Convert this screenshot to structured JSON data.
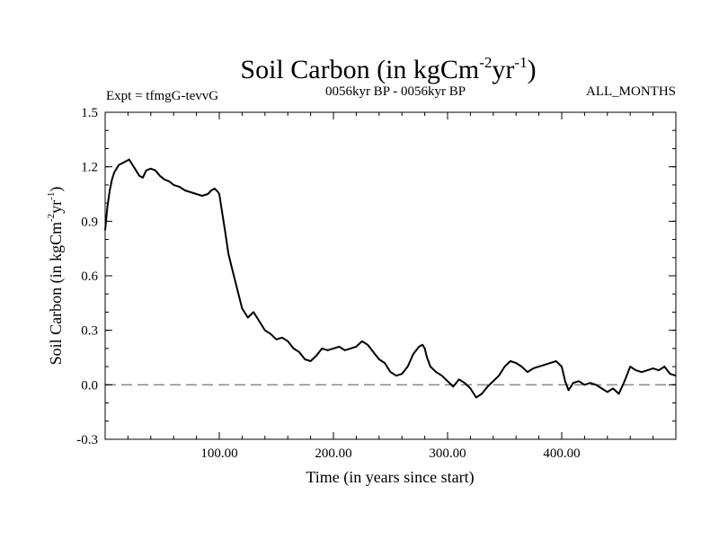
{
  "chart_data": {
    "type": "line",
    "title": {
      "main": "Soil Carbon (in kgCm",
      "exp1": "-2",
      "mid": "yr",
      "exp2": "-1",
      "end": ")"
    },
    "subtitle_left": "Expt = tfmgG-tevvG",
    "subtitle_center": "0056kyr BP - 0056kyr BP",
    "subtitle_right": "ALL_MONTHS",
    "xlabel": "Time (in years since start)",
    "ylabel": {
      "main": "Soil Carbon (in kgCm",
      "exp1": "-2",
      "mid": "yr",
      "exp2": "-1",
      "end": ")"
    },
    "xlim": [
      0,
      500
    ],
    "ylim": [
      -0.3,
      1.5
    ],
    "x_ticks": [
      100,
      200,
      300,
      400
    ],
    "x_tick_labels": [
      "100.00",
      "200.00",
      "300.00",
      "400.00"
    ],
    "y_ticks": [
      -0.3,
      0.0,
      0.3,
      0.6,
      0.9,
      1.2,
      1.5
    ],
    "y_tick_labels": [
      "-0.3",
      "0.0",
      "0.3",
      "0.6",
      "0.9",
      "1.2",
      "1.5"
    ],
    "reference_line": {
      "y": 0.0,
      "style": "dashed",
      "color": "#888888"
    },
    "series": [
      {
        "name": "Soil Carbon",
        "color": "#000000",
        "x": [
          0,
          2,
          4,
          6,
          8,
          10,
          12,
          15,
          18,
          21,
          24,
          27,
          30,
          33,
          36,
          40,
          44,
          48,
          52,
          56,
          60,
          65,
          70,
          75,
          80,
          85,
          90,
          93,
          96,
          99,
          100,
          102,
          105,
          108,
          112,
          116,
          120,
          125,
          130,
          135,
          140,
          145,
          150,
          155,
          160,
          165,
          170,
          175,
          180,
          185,
          190,
          195,
          200,
          205,
          210,
          215,
          220,
          225,
          230,
          235,
          240,
          245,
          250,
          255,
          260,
          265,
          270,
          275,
          278,
          280,
          282,
          285,
          290,
          295,
          300,
          305,
          310,
          315,
          320,
          325,
          330,
          335,
          340,
          345,
          350,
          355,
          360,
          365,
          370,
          375,
          380,
          385,
          390,
          395,
          400,
          403,
          406,
          410,
          415,
          420,
          425,
          430,
          435,
          440,
          445,
          450,
          455,
          460,
          465,
          470,
          475,
          480,
          485,
          490,
          495,
          500
        ],
        "y": [
          0.85,
          0.98,
          1.07,
          1.13,
          1.17,
          1.19,
          1.21,
          1.22,
          1.23,
          1.24,
          1.21,
          1.18,
          1.15,
          1.14,
          1.18,
          1.19,
          1.18,
          1.15,
          1.13,
          1.12,
          1.1,
          1.09,
          1.07,
          1.06,
          1.05,
          1.04,
          1.05,
          1.07,
          1.08,
          1.06,
          1.05,
          0.97,
          0.85,
          0.72,
          0.62,
          0.52,
          0.42,
          0.37,
          0.4,
          0.35,
          0.3,
          0.28,
          0.25,
          0.26,
          0.24,
          0.2,
          0.18,
          0.14,
          0.13,
          0.16,
          0.2,
          0.19,
          0.2,
          0.21,
          0.19,
          0.2,
          0.21,
          0.24,
          0.22,
          0.18,
          0.14,
          0.12,
          0.07,
          0.05,
          0.06,
          0.1,
          0.17,
          0.21,
          0.22,
          0.2,
          0.15,
          0.1,
          0.07,
          0.05,
          0.02,
          -0.01,
          0.03,
          0.01,
          -0.02,
          -0.07,
          -0.05,
          -0.01,
          0.02,
          0.05,
          0.1,
          0.13,
          0.12,
          0.1,
          0.07,
          0.09,
          0.1,
          0.11,
          0.12,
          0.13,
          0.1,
          0.02,
          -0.03,
          0.01,
          0.02,
          0.0,
          0.01,
          0.0,
          -0.02,
          -0.04,
          -0.02,
          -0.05,
          0.02,
          0.1,
          0.08,
          0.07,
          0.08,
          0.09,
          0.08,
          0.1,
          0.06,
          0.05
        ]
      }
    ]
  }
}
